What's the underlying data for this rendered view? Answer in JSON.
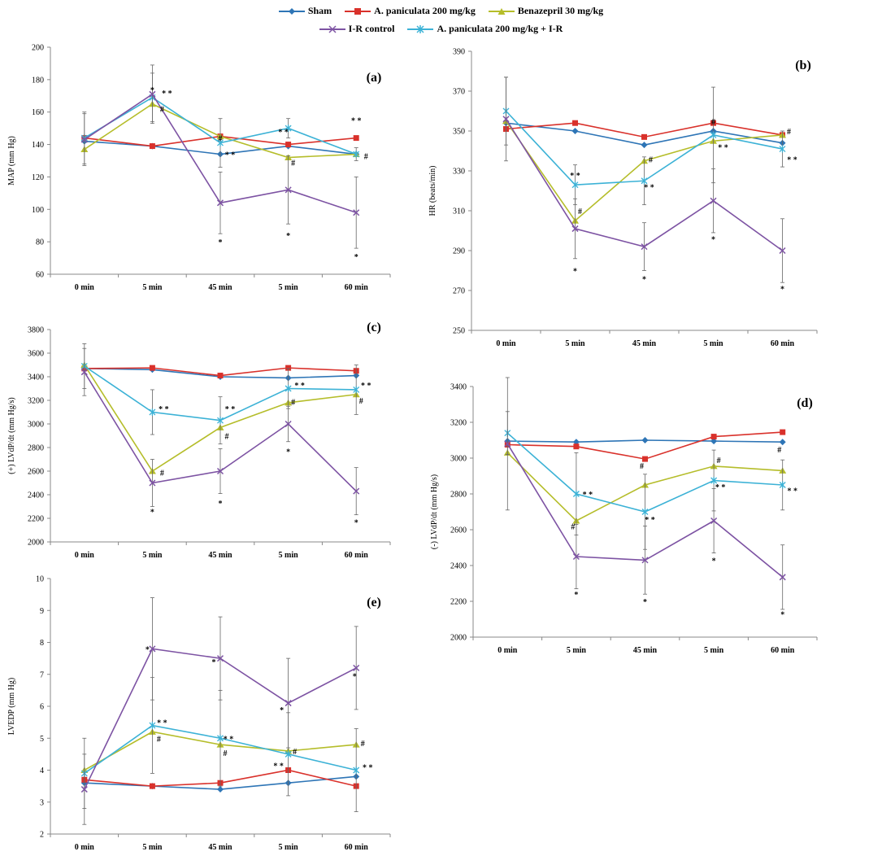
{
  "legend": {
    "items": [
      {
        "label": "Sham",
        "series": "sham"
      },
      {
        "label": "A. paniculata 200 mg/kg",
        "series": "ap"
      },
      {
        "label": "Benazepril 30 mg/kg",
        "series": "ben"
      },
      {
        "label": "I-R control",
        "series": "ir"
      },
      {
        "label": "A. paniculata 200 mg/kg + I-R",
        "series": "apir"
      }
    ]
  },
  "series_styles": {
    "sham": {
      "name": "Sham",
      "color": "#2e75b6",
      "marker": "diamond"
    },
    "ap": {
      "name": "A. paniculata 200 mg/kg",
      "color": "#d9312b",
      "marker": "square"
    },
    "ben": {
      "name": "Benazepril 30 mg/kg",
      "color": "#b5bd2a",
      "marker": "triangle"
    },
    "ir": {
      "name": "I-R control",
      "color": "#7d53a3",
      "marker": "x"
    },
    "apir": {
      "name": "A. paniculata 200 mg/kg + I-R",
      "color": "#3cb2d6",
      "marker": "star"
    }
  },
  "chart_data": [
    {
      "id": "a",
      "type": "line",
      "panel_label": "(a)",
      "ylabel": "MAP (mm Hg)",
      "xlabel": "",
      "categories": [
        "0 min",
        "5 min",
        "45 min",
        "5 min",
        "60 min"
      ],
      "ylim": [
        60,
        200
      ],
      "yticks": [
        60,
        80,
        100,
        120,
        140,
        160,
        180,
        200
      ],
      "series": [
        {
          "key": "sham",
          "values": [
            142,
            139,
            134,
            139,
            134
          ]
        },
        {
          "key": "ap",
          "values": [
            144,
            139,
            145,
            140,
            144
          ]
        },
        {
          "key": "ben",
          "values": [
            137,
            165,
            145,
            132,
            134
          ]
        },
        {
          "key": "ir",
          "values": [
            143,
            171,
            104,
            112,
            98
          ],
          "errors": [
            16,
            18,
            19,
            21,
            22
          ]
        },
        {
          "key": "apir",
          "values": [
            144,
            169,
            141,
            150,
            134
          ],
          "errors": [
            16,
            15,
            15,
            6,
            4
          ]
        }
      ],
      "annotations": [
        {
          "x": 1,
          "y": 174,
          "text": "*"
        },
        {
          "x": 1,
          "y": 172,
          "text": "* *",
          "dx": 18
        },
        {
          "x": 1,
          "y": 162,
          "text": "#",
          "dx": 12
        },
        {
          "x": 2,
          "y": 134,
          "text": "* *",
          "dx": 12
        },
        {
          "x": 2,
          "y": 144,
          "text": "#"
        },
        {
          "x": 2,
          "y": 80,
          "text": "*"
        },
        {
          "x": 3,
          "y": 148,
          "text": "* *",
          "dx": -6
        },
        {
          "x": 3,
          "y": 129,
          "text": "#",
          "dx": 6
        },
        {
          "x": 3,
          "y": 84,
          "text": "*"
        },
        {
          "x": 4,
          "y": 155,
          "text": "* *"
        },
        {
          "x": 4,
          "y": 133,
          "text": "#",
          "dx": 12
        },
        {
          "x": 4,
          "y": 71,
          "text": "*"
        }
      ]
    },
    {
      "id": "b",
      "type": "line",
      "panel_label": "(b)",
      "ylabel": "HR (beats/min)",
      "xlabel": "",
      "categories": [
        "0 min",
        "5 min",
        "45 min",
        "5 min",
        "60 min"
      ],
      "ylim": [
        250,
        390
      ],
      "yticks": [
        250,
        270,
        290,
        310,
        330,
        350,
        370,
        390
      ],
      "series": [
        {
          "key": "sham",
          "values": [
            354,
            350,
            343,
            350,
            344
          ]
        },
        {
          "key": "ap",
          "values": [
            351,
            354,
            347,
            354,
            348
          ]
        },
        {
          "key": "ben",
          "values": [
            355,
            305,
            335,
            345,
            348
          ]
        },
        {
          "key": "ir",
          "values": [
            356,
            301,
            292,
            315,
            290
          ],
          "errors": [
            21,
            15,
            12,
            16,
            16
          ]
        },
        {
          "key": "apir",
          "values": [
            360,
            323,
            325,
            348,
            341
          ],
          "errors": [
            17,
            10,
            12,
            24,
            9
          ]
        }
      ],
      "annotations": [
        {
          "x": 1,
          "y": 328,
          "text": "* *"
        },
        {
          "x": 1,
          "y": 310,
          "text": "#",
          "dx": 6
        },
        {
          "x": 1,
          "y": 280,
          "text": "*"
        },
        {
          "x": 2,
          "y": 336,
          "text": "#",
          "dx": 8
        },
        {
          "x": 2,
          "y": 322,
          "text": "* *",
          "dx": 6
        },
        {
          "x": 2,
          "y": 276,
          "text": "*"
        },
        {
          "x": 3,
          "y": 355,
          "text": "#"
        },
        {
          "x": 3,
          "y": 342,
          "text": "* *",
          "dx": 12
        },
        {
          "x": 3,
          "y": 296,
          "text": "*"
        },
        {
          "x": 4,
          "y": 350,
          "text": "#",
          "dx": 8
        },
        {
          "x": 4,
          "y": 336,
          "text": "* *",
          "dx": 12
        },
        {
          "x": 4,
          "y": 271,
          "text": "*"
        }
      ]
    },
    {
      "id": "c",
      "type": "line",
      "panel_label": "(c)",
      "ylabel": "(+) LVdP/dt (mm Hg/s)",
      "xlabel": "",
      "categories": [
        "0 min",
        "5 min",
        "45 min",
        "5 min",
        "60 min"
      ],
      "ylim": [
        2000,
        3800
      ],
      "yticks": [
        2000,
        2200,
        2400,
        2600,
        2800,
        3000,
        3200,
        3400,
        3600,
        3800
      ],
      "series": [
        {
          "key": "sham",
          "values": [
            3470,
            3460,
            3400,
            3390,
            3410
          ]
        },
        {
          "key": "ap",
          "values": [
            3470,
            3475,
            3410,
            3475,
            3450
          ]
        },
        {
          "key": "ben",
          "values": [
            3500,
            2600,
            2970,
            3180,
            3250
          ]
        },
        {
          "key": "ir",
          "values": [
            3440,
            2500,
            2600,
            3000,
            2430
          ],
          "errors": [
            200,
            200,
            190,
            150,
            200
          ]
        },
        {
          "key": "apir",
          "values": [
            3490,
            3100,
            3030,
            3300,
            3290
          ],
          "errors": [
            190,
            190,
            200,
            170,
            210
          ]
        }
      ],
      "annotations": [
        {
          "x": 1,
          "y": 3130,
          "text": "* *",
          "dx": 14
        },
        {
          "x": 1,
          "y": 2590,
          "text": "#",
          "dx": 12
        },
        {
          "x": 1,
          "y": 2260,
          "text": "*"
        },
        {
          "x": 2,
          "y": 3130,
          "text": "* *",
          "dx": 12
        },
        {
          "x": 2,
          "y": 2900,
          "text": "#",
          "dx": 8
        },
        {
          "x": 2,
          "y": 2330,
          "text": "*"
        },
        {
          "x": 3,
          "y": 3330,
          "text": "* *",
          "dx": 14
        },
        {
          "x": 3,
          "y": 3190,
          "text": "#",
          "dx": 6
        },
        {
          "x": 3,
          "y": 2770,
          "text": "*"
        },
        {
          "x": 4,
          "y": 3330,
          "text": "* *",
          "dx": 12
        },
        {
          "x": 4,
          "y": 3200,
          "text": "#",
          "dx": 6
        },
        {
          "x": 4,
          "y": 2170,
          "text": "*"
        }
      ]
    },
    {
      "id": "d",
      "type": "line",
      "panel_label": "(d)",
      "ylabel": "(-) LVdP/dt  (mm Hg/s)",
      "xlabel": "",
      "categories": [
        "0 min",
        "5 min",
        "45 min",
        "5 min",
        "60 min"
      ],
      "ylim": [
        2000,
        3400
      ],
      "yticks": [
        2000,
        2200,
        2400,
        2600,
        2800,
        3000,
        3200,
        3400
      ],
      "series": [
        {
          "key": "sham",
          "values": [
            3095,
            3090,
            3100,
            3095,
            3090
          ]
        },
        {
          "key": "ap",
          "values": [
            3075,
            3065,
            2995,
            3120,
            3145
          ]
        },
        {
          "key": "ben",
          "values": [
            3030,
            2650,
            2850,
            2955,
            2930
          ]
        },
        {
          "key": "ir",
          "values": [
            3080,
            2450,
            2430,
            2650,
            2335
          ],
          "errors": [
            370,
            180,
            190,
            180,
            180
          ]
        },
        {
          "key": "apir",
          "values": [
            3140,
            2800,
            2700,
            2875,
            2850
          ],
          "errors": [
            120,
            230,
            210,
            170,
            140
          ]
        }
      ],
      "annotations": [
        {
          "x": 1,
          "y": 2800,
          "text": "* *",
          "dx": 14
        },
        {
          "x": 1,
          "y": 2620,
          "text": "#",
          "dx": -4
        },
        {
          "x": 1,
          "y": 2240,
          "text": "*"
        },
        {
          "x": 2,
          "y": 2960,
          "text": "#",
          "dx": -4
        },
        {
          "x": 2,
          "y": 2660,
          "text": "* *",
          "dx": 6
        },
        {
          "x": 2,
          "y": 2200,
          "text": "*"
        },
        {
          "x": 3,
          "y": 2990,
          "text": "#",
          "dx": 6
        },
        {
          "x": 3,
          "y": 2840,
          "text": "* *",
          "dx": 8
        },
        {
          "x": 3,
          "y": 2430,
          "text": "*"
        },
        {
          "x": 4,
          "y": 3050,
          "text": "#",
          "dx": -4
        },
        {
          "x": 4,
          "y": 2820,
          "text": "* *",
          "dx": 12
        },
        {
          "x": 4,
          "y": 2130,
          "text": "*"
        }
      ]
    },
    {
      "id": "e",
      "type": "line",
      "panel_label": "(e)",
      "ylabel": "LVEDP (mm Hg)",
      "xlabel": "",
      "categories": [
        "0 min",
        "5 min",
        "45 min",
        "5 min",
        "60 min"
      ],
      "ylim": [
        2,
        10
      ],
      "yticks": [
        2,
        3,
        4,
        5,
        6,
        7,
        8,
        9,
        10
      ],
      "series": [
        {
          "key": "sham",
          "values": [
            3.6,
            3.5,
            3.4,
            3.6,
            3.8
          ]
        },
        {
          "key": "ap",
          "values": [
            3.7,
            3.5,
            3.6,
            4.0,
            3.5
          ]
        },
        {
          "key": "ben",
          "values": [
            4.0,
            5.2,
            4.8,
            4.6,
            4.8
          ]
        },
        {
          "key": "ir",
          "values": [
            3.4,
            7.8,
            7.5,
            6.1,
            7.2
          ],
          "errors": [
            1.1,
            1.6,
            1.3,
            1.4,
            1.3
          ]
        },
        {
          "key": "apir",
          "values": [
            3.9,
            5.4,
            5.0,
            4.5,
            4.0
          ],
          "errors": [
            1.1,
            1.5,
            1.5,
            1.3,
            1.3
          ]
        }
      ],
      "annotations": [
        {
          "x": 1,
          "y": 7.8,
          "text": "*",
          "dx": -6
        },
        {
          "x": 1,
          "y": 5.5,
          "text": "* *",
          "dx": 12
        },
        {
          "x": 1,
          "y": 5.0,
          "text": "#",
          "dx": 8
        },
        {
          "x": 2,
          "y": 7.4,
          "text": "*",
          "dx": -8
        },
        {
          "x": 2,
          "y": 5.0,
          "text": "* *",
          "dx": 10
        },
        {
          "x": 2,
          "y": 4.55,
          "text": "#",
          "dx": 6
        },
        {
          "x": 3,
          "y": 5.9,
          "text": "*",
          "dx": -8
        },
        {
          "x": 3,
          "y": 4.6,
          "text": "#",
          "dx": 8
        },
        {
          "x": 3,
          "y": 4.15,
          "text": "* *",
          "dx": -12
        },
        {
          "x": 4,
          "y": 6.95,
          "text": "*",
          "dx": -2
        },
        {
          "x": 4,
          "y": 4.85,
          "text": "#",
          "dx": 8
        },
        {
          "x": 4,
          "y": 4.1,
          "text": "* *",
          "dx": 14
        }
      ]
    }
  ]
}
